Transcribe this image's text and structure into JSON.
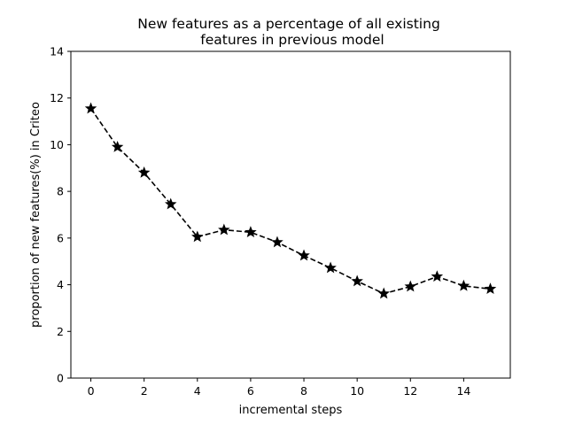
{
  "chart_data": {
    "type": "line",
    "title": [
      "New features as a percentage of all existing",
      "features in previous model"
    ],
    "xlabel": "incremental steps",
    "ylabel": "proportion of new features(%) in Criteo",
    "xlim": [
      -0.75,
      15.75
    ],
    "ylim": [
      0,
      14
    ],
    "xticks": [
      0,
      2,
      4,
      6,
      8,
      10,
      12,
      14
    ],
    "yticks": [
      0,
      2,
      4,
      6,
      8,
      10,
      12,
      14
    ],
    "grid": false,
    "series": [
      {
        "line_style": "dashed",
        "marker": "star",
        "color": "#000000",
        "x": [
          0,
          1,
          2,
          3,
          4,
          5,
          6,
          7,
          8,
          9,
          10,
          11,
          12,
          13,
          14,
          15
        ],
        "y": [
          11.55,
          9.9,
          8.8,
          7.45,
          6.05,
          6.35,
          6.25,
          5.82,
          5.25,
          4.72,
          4.15,
          3.62,
          3.92,
          4.35,
          3.95,
          3.82
        ]
      }
    ]
  }
}
